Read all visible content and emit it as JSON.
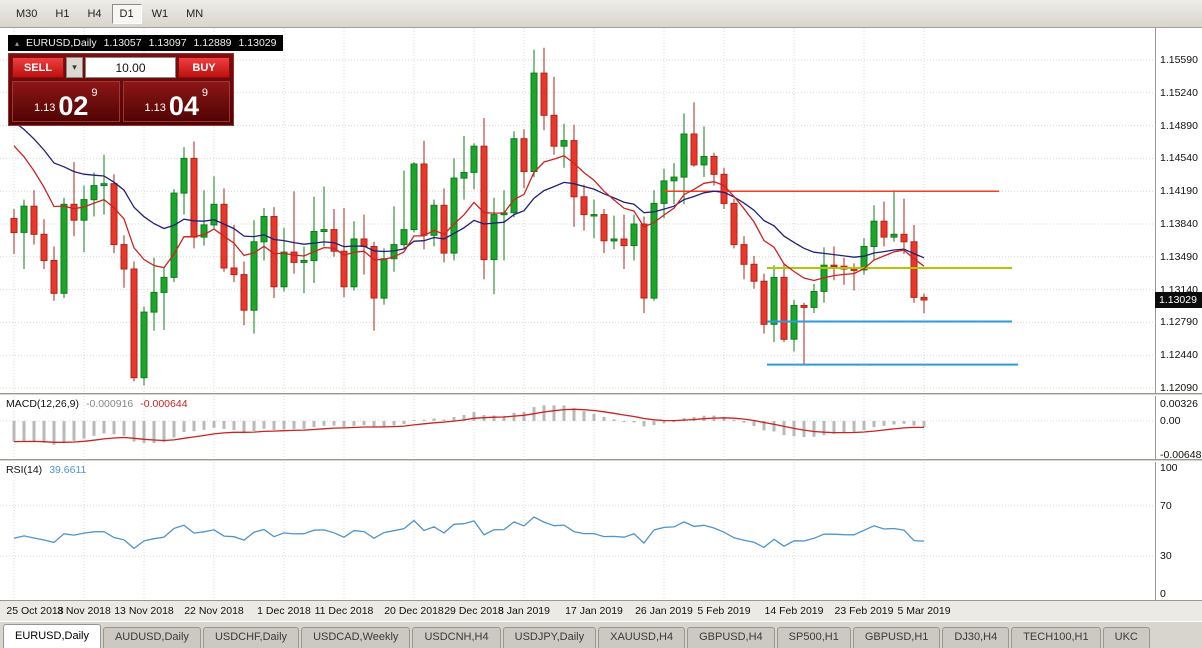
{
  "toolbar": {
    "timeframes": [
      {
        "label": "M30",
        "active": false
      },
      {
        "label": "H1",
        "active": false
      },
      {
        "label": "H4",
        "active": false
      },
      {
        "label": "D1",
        "active": true
      },
      {
        "label": "W1",
        "active": false
      },
      {
        "label": "MN",
        "active": false
      }
    ]
  },
  "header": {
    "symbol_period": "EURUSD,Daily",
    "open": "1.13057",
    "high": "1.13097",
    "low": "1.12889",
    "close": "1.13029"
  },
  "icons": {
    "chevron_down": "▾",
    "shift_marker": "▴"
  },
  "trade": {
    "sell_label": "SELL",
    "buy_label": "BUY",
    "volume": "10.00",
    "sell_price": {
      "prefix": "1.13",
      "big": "02",
      "sup": "9"
    },
    "buy_price": {
      "prefix": "1.13",
      "big": "04",
      "sup": "9"
    }
  },
  "chart_data": {
    "type": "candlestick",
    "symbol": "EURUSD",
    "timeframe": "Daily",
    "current_price": "1.13029",
    "y_ticks": [
      "1.15590",
      "1.15240",
      "1.14890",
      "1.14540",
      "1.14190",
      "1.13840",
      "1.13490",
      "1.13140",
      "1.12790",
      "1.12440",
      "1.12090"
    ],
    "x_labels": [
      {
        "label": "25 Oct 2018",
        "bar": 0
      },
      {
        "label": "3 Nov 2018",
        "bar": 7
      },
      {
        "label": "13 Nov 2018",
        "bar": 13
      },
      {
        "label": "22 Nov 2018",
        "bar": 20
      },
      {
        "label": "1 Dec 2018",
        "bar": 27
      },
      {
        "label": "11 Dec 2018",
        "bar": 33
      },
      {
        "label": "20 Dec 2018",
        "bar": 40
      },
      {
        "label": "29 Dec 2018",
        "bar": 46
      },
      {
        "label": "8 Jan 2019",
        "bar": 51
      },
      {
        "label": "17 Jan 2019",
        "bar": 58
      },
      {
        "label": "26 Jan 2019",
        "bar": 65
      },
      {
        "label": "5 Feb 2019",
        "bar": 71
      },
      {
        "label": "14 Feb 2019",
        "bar": 78
      },
      {
        "label": "23 Feb 2019",
        "bar": 85
      },
      {
        "label": "5 Mar 2019",
        "bar": 91
      }
    ],
    "candles": [
      [
        1.139,
        1.14,
        1.1352,
        1.1375
      ],
      [
        1.1375,
        1.141,
        1.1336,
        1.1403
      ],
      [
        1.1403,
        1.142,
        1.1362,
        1.1373
      ],
      [
        1.1373,
        1.1389,
        1.1336,
        1.1345
      ],
      [
        1.1345,
        1.136,
        1.1302,
        1.131
      ],
      [
        1.131,
        1.1412,
        1.1305,
        1.1405
      ],
      [
        1.1405,
        1.145,
        1.1371,
        1.1388
      ],
      [
        1.1388,
        1.1425,
        1.1354,
        1.141
      ],
      [
        1.141,
        1.1439,
        1.1392,
        1.1425
      ],
      [
        1.1425,
        1.1458,
        1.1394,
        1.1427
      ],
      [
        1.1427,
        1.1437,
        1.1353,
        1.1362
      ],
      [
        1.1362,
        1.1372,
        1.1316,
        1.1336
      ],
      [
        1.1336,
        1.1344,
        1.1216,
        1.122
      ],
      [
        1.122,
        1.1296,
        1.1212,
        1.129
      ],
      [
        1.129,
        1.1348,
        1.127,
        1.1311
      ],
      [
        1.1311,
        1.1338,
        1.1271,
        1.1327
      ],
      [
        1.1327,
        1.1421,
        1.1322,
        1.1417
      ],
      [
        1.1417,
        1.1466,
        1.1394,
        1.1454
      ],
      [
        1.1454,
        1.1472,
        1.1358,
        1.137
      ],
      [
        1.137,
        1.142,
        1.1361,
        1.1383
      ],
      [
        1.1383,
        1.1435,
        1.1378,
        1.1405
      ],
      [
        1.1405,
        1.1422,
        1.1333,
        1.1337
      ],
      [
        1.1337,
        1.1383,
        1.1322,
        1.133
      ],
      [
        1.133,
        1.1344,
        1.1276,
        1.1292
      ],
      [
        1.1292,
        1.1388,
        1.1267,
        1.1365
      ],
      [
        1.1365,
        1.1401,
        1.1345,
        1.1392
      ],
      [
        1.1392,
        1.1402,
        1.1305,
        1.1317
      ],
      [
        1.1317,
        1.138,
        1.1312,
        1.1354
      ],
      [
        1.1354,
        1.1419,
        1.1331,
        1.1343
      ],
      [
        1.1343,
        1.136,
        1.131,
        1.1345
      ],
      [
        1.1345,
        1.1413,
        1.1321,
        1.1376
      ],
      [
        1.1376,
        1.1424,
        1.136,
        1.1378
      ],
      [
        1.1378,
        1.14,
        1.1349,
        1.1355
      ],
      [
        1.1355,
        1.1401,
        1.1306,
        1.1317
      ],
      [
        1.1317,
        1.1387,
        1.1313,
        1.1368
      ],
      [
        1.1368,
        1.1394,
        1.133,
        1.136
      ],
      [
        1.136,
        1.1365,
        1.127,
        1.1305
      ],
      [
        1.1305,
        1.1358,
        1.1298,
        1.1347
      ],
      [
        1.1347,
        1.1403,
        1.1333,
        1.1362
      ],
      [
        1.1362,
        1.1441,
        1.1357,
        1.1378
      ],
      [
        1.1378,
        1.145,
        1.1375,
        1.1448
      ],
      [
        1.1448,
        1.1473,
        1.1357,
        1.1372
      ],
      [
        1.1372,
        1.141,
        1.136,
        1.1404
      ],
      [
        1.1404,
        1.1422,
        1.1343,
        1.1353
      ],
      [
        1.1353,
        1.1454,
        1.1345,
        1.1433
      ],
      [
        1.1433,
        1.1478,
        1.141,
        1.1439
      ],
      [
        1.1439,
        1.147,
        1.1421,
        1.1467
      ],
      [
        1.1467,
        1.1497,
        1.1325,
        1.1346
      ],
      [
        1.1346,
        1.1412,
        1.1309,
        1.1394
      ],
      [
        1.1394,
        1.142,
        1.1345,
        1.1396
      ],
      [
        1.1396,
        1.1483,
        1.1391,
        1.1475
      ],
      [
        1.1475,
        1.1485,
        1.1422,
        1.144
      ],
      [
        1.144,
        1.157,
        1.1434,
        1.1545
      ],
      [
        1.1545,
        1.1572,
        1.1484,
        1.15
      ],
      [
        1.15,
        1.1541,
        1.1458,
        1.1467
      ],
      [
        1.1467,
        1.1491,
        1.1444,
        1.1473
      ],
      [
        1.1473,
        1.149,
        1.1381,
        1.1413
      ],
      [
        1.1413,
        1.1426,
        1.1377,
        1.1394
      ],
      [
        1.1394,
        1.141,
        1.1369,
        1.1394
      ],
      [
        1.1394,
        1.14,
        1.1353,
        1.1366
      ],
      [
        1.1366,
        1.1393,
        1.1357,
        1.1368
      ],
      [
        1.1368,
        1.1394,
        1.1336,
        1.1361
      ],
      [
        1.1361,
        1.1394,
        1.1345,
        1.1384
      ],
      [
        1.1384,
        1.1392,
        1.1289,
        1.1305
      ],
      [
        1.1305,
        1.142,
        1.1302,
        1.1406
      ],
      [
        1.1406,
        1.1443,
        1.139,
        1.143
      ],
      [
        1.143,
        1.1449,
        1.1405,
        1.1434
      ],
      [
        1.1434,
        1.1502,
        1.1405,
        1.148
      ],
      [
        1.148,
        1.1514,
        1.1445,
        1.1447
      ],
      [
        1.1447,
        1.1488,
        1.1434,
        1.1456
      ],
      [
        1.1456,
        1.146,
        1.1425,
        1.1437
      ],
      [
        1.1437,
        1.1444,
        1.14,
        1.1406
      ],
      [
        1.1406,
        1.1411,
        1.1358,
        1.1362
      ],
      [
        1.1362,
        1.1371,
        1.1325,
        1.1341
      ],
      [
        1.1341,
        1.135,
        1.1315,
        1.1323
      ],
      [
        1.1323,
        1.1331,
        1.1267,
        1.1277
      ],
      [
        1.1277,
        1.134,
        1.1258,
        1.1327
      ],
      [
        1.1327,
        1.1341,
        1.1258,
        1.1261
      ],
      [
        1.1261,
        1.1303,
        1.1248,
        1.1297
      ],
      [
        1.1297,
        1.13,
        1.1234,
        1.1295
      ],
      [
        1.1295,
        1.132,
        1.1289,
        1.1312
      ],
      [
        1.1312,
        1.1359,
        1.13,
        1.134
      ],
      [
        1.134,
        1.136,
        1.1324,
        1.1339
      ],
      [
        1.1339,
        1.1348,
        1.1319,
        1.1336
      ],
      [
        1.1336,
        1.1342,
        1.1313,
        1.1335
      ],
      [
        1.1335,
        1.1369,
        1.133,
        1.136
      ],
      [
        1.136,
        1.1404,
        1.1345,
        1.1387
      ],
      [
        1.1387,
        1.1408,
        1.136,
        1.137
      ],
      [
        1.137,
        1.142,
        1.1365,
        1.1373
      ],
      [
        1.1373,
        1.1411,
        1.1352,
        1.1365
      ],
      [
        1.1365,
        1.1383,
        1.13,
        1.13057
      ],
      [
        1.13057,
        1.13097,
        1.12889,
        1.13029
      ]
    ],
    "bull_color": "#1ca52b",
    "bear_color": "#e8382c",
    "moving_averages": [
      {
        "name": "ma-slow",
        "color": "#20207a",
        "period": 21
      },
      {
        "name": "ma-fast",
        "color": "#cc2222",
        "period": 10
      }
    ],
    "hlines": [
      {
        "price": 1.1419,
        "color": "#fb3b1e",
        "stroke": 1.5,
        "role": "resistance",
        "from_bar": 65,
        "to_bar": 98.5
      },
      {
        "price": 1.1337,
        "color": "#b4c400",
        "stroke": 2,
        "role": "pivot",
        "from_bar": 75.3,
        "to_bar": 99.8
      },
      {
        "price": 1.128,
        "color": "#2e9cd6",
        "stroke": 2,
        "role": "support",
        "from_bar": 75.3,
        "to_bar": 99.8
      },
      {
        "price": 1.1234,
        "color": "#2e9cd6",
        "stroke": 2,
        "role": "support-low",
        "from_bar": 75.3,
        "to_bar": 100.4
      }
    ],
    "macd": {
      "label": "MACD(12,26,9)",
      "value": "-0.000916",
      "signal_value": "-0.000644",
      "scale": [
        "0.00326",
        "0.00",
        "-0.00648"
      ],
      "histogram_color": "#b9b9b9",
      "signal_color": "#cc2222"
    },
    "rsi": {
      "label": "RSI(14)",
      "value": "39.6611",
      "scale": [
        "100",
        "70",
        "30",
        "0"
      ],
      "levels": [
        70,
        30
      ],
      "line_color": "#4f94cd"
    }
  },
  "tabs": [
    {
      "label": "EURUSD,Daily",
      "active": true
    },
    {
      "label": "AUDUSD,Daily",
      "active": false
    },
    {
      "label": "USDCHF,Daily",
      "active": false
    },
    {
      "label": "USDCAD,Weekly",
      "active": false
    },
    {
      "label": "USDCNH,H4",
      "active": false
    },
    {
      "label": "USDJPY,Daily",
      "active": false
    },
    {
      "label": "XAUUSD,H4",
      "active": false
    },
    {
      "label": "GBPUSD,H4",
      "active": false
    },
    {
      "label": "SP500,H1",
      "active": false
    },
    {
      "label": "GBPUSD,H1",
      "active": false
    },
    {
      "label": "DJ30,H4",
      "active": false
    },
    {
      "label": "TECH100,H1",
      "active": false
    },
    {
      "label": "UKC",
      "active": false
    }
  ]
}
